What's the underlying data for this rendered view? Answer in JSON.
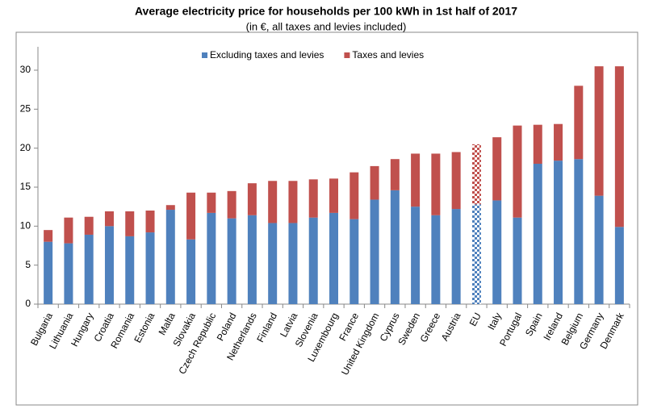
{
  "chart_data": {
    "type": "stacked_bar",
    "title": "Average electricity price for households per 100 kWh in 1st half of 2017",
    "subtitle": "(in €, all taxes and levies included)",
    "categories": [
      "Bulgaria",
      "Lithuania",
      "Hungary",
      "Croatia",
      "Romania",
      "Estonia",
      "Malta",
      "Slovakia",
      "Czech Republic",
      "Poland",
      "Netherlands",
      "Finland",
      "Latvia",
      "Slovenia",
      "Luxembourg",
      "France",
      "United Kingdom",
      "Cyprus",
      "Sweden",
      "Greece",
      "Austria",
      "EU",
      "Italy",
      "Portugal",
      "Spain",
      "Ireland",
      "Belgium",
      "Germany",
      "Denmark"
    ],
    "series": [
      {
        "name": "Excluding taxes and levies",
        "color": "#4f81bd",
        "values": [
          8.0,
          7.8,
          8.9,
          10.0,
          8.7,
          9.2,
          12.1,
          8.3,
          11.7,
          11.0,
          11.4,
          10.4,
          10.4,
          11.1,
          11.7,
          10.9,
          13.4,
          14.6,
          12.5,
          11.4,
          12.2,
          12.8,
          13.3,
          11.1,
          18.0,
          18.4,
          18.6,
          13.9,
          9.9
        ]
      },
      {
        "name": "Taxes and levies",
        "color": "#c0504d",
        "values": [
          1.5,
          3.3,
          2.3,
          1.9,
          3.2,
          2.8,
          0.6,
          6.0,
          2.6,
          3.5,
          4.1,
          5.4,
          5.4,
          4.9,
          4.4,
          6.0,
          4.3,
          4.0,
          6.8,
          7.9,
          7.3,
          7.7,
          8.1,
          11.8,
          5.0,
          4.7,
          9.4,
          16.6,
          20.6
        ]
      }
    ],
    "highlight": "EU",
    "ylim": [
      0,
      33
    ],
    "yticks": [
      0,
      5,
      10,
      15,
      20,
      25,
      30
    ],
    "grid": false,
    "legend": "top"
  }
}
